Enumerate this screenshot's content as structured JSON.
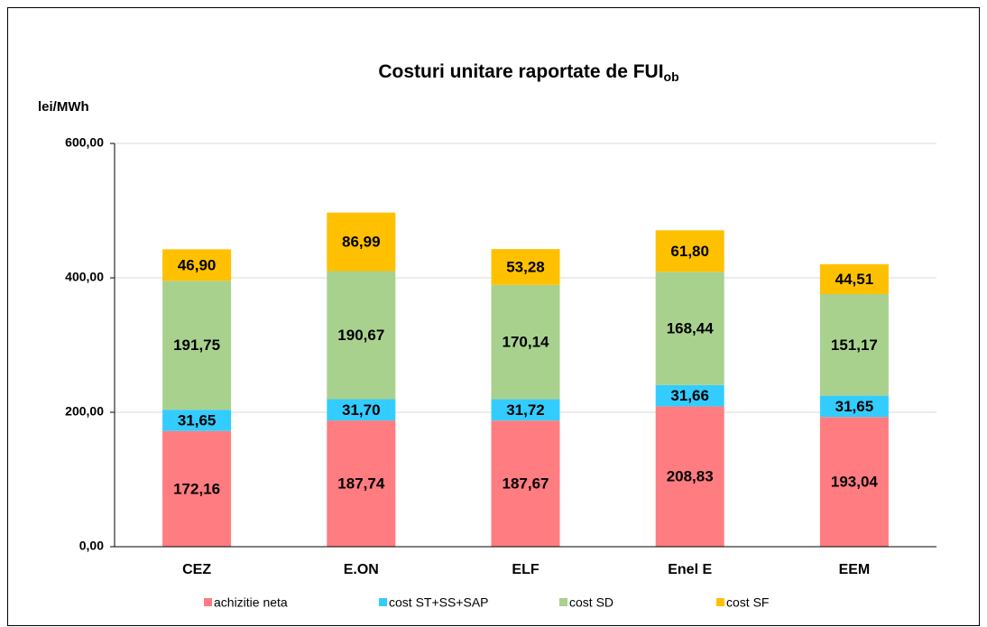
{
  "chart_data": {
    "type": "stacked_bar",
    "title": "Costuri unitare raportate de FUI",
    "title_subscript": "ob",
    "y_label": "lei/MWh",
    "categories": [
      "CEZ",
      "E.ON",
      "ELF",
      "Enel E",
      "EEM"
    ],
    "series": [
      {
        "name": "achizitie neta",
        "color": "#ff7c80",
        "values": [
          172.16,
          187.74,
          187.67,
          208.83,
          193.04
        ],
        "value_labels": [
          "172,16",
          "187,74",
          "187,67",
          "208,83",
          "193,04"
        ]
      },
      {
        "name": "cost ST+SS+SAP",
        "color": "#33ccff",
        "values": [
          31.65,
          31.7,
          31.72,
          31.66,
          31.65
        ],
        "value_labels": [
          "31,65",
          "31,70",
          "31,72",
          "31,66",
          "31,65"
        ]
      },
      {
        "name": "cost SD",
        "color": "#a9d18e",
        "values": [
          191.75,
          190.67,
          170.14,
          168.44,
          151.17
        ],
        "value_labels": [
          "191,75",
          "190,67",
          "170,14",
          "168,44",
          "151,17"
        ]
      },
      {
        "name": "cost SF",
        "color": "#ffc000",
        "values": [
          46.9,
          86.99,
          53.28,
          61.8,
          44.51
        ],
        "value_labels": [
          "46,90",
          "86,99",
          "53,28",
          "61,80",
          "44,51"
        ]
      }
    ],
    "ylim": [
      0,
      600
    ],
    "yticks": [
      {
        "value": 0,
        "label": "0,00"
      },
      {
        "value": 200,
        "label": "200,00"
      },
      {
        "value": 400,
        "label": "400,00"
      },
      {
        "value": 600,
        "label": "600,00"
      }
    ],
    "grid": true,
    "legend": "bottom"
  }
}
